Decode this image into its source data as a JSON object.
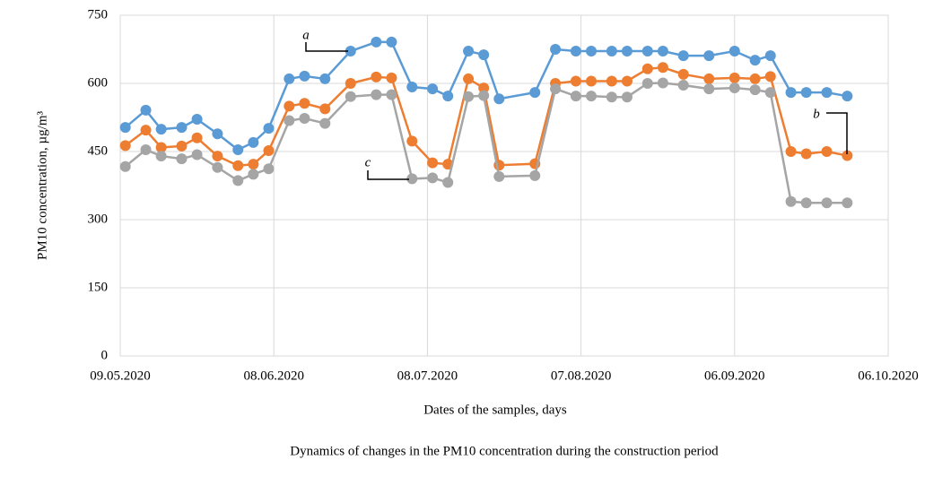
{
  "chart_data": {
    "type": "line",
    "title": "Dynamics of changes in the PM10 concentration during the construction period",
    "xlabel": "Dates of the samples, days",
    "ylabel": "PM10 concentration, µg/m³",
    "x": [
      "10.05.2020",
      "14.05.2020",
      "17.05.2020",
      "21.05.2020",
      "24.05.2020",
      "28.05.2020",
      "01.06.2020",
      "04.06.2020",
      "07.06.2020",
      "11.06.2020",
      "14.06.2020",
      "18.06.2020",
      "23.06.2020",
      "28.06.2020",
      "01.07.2020",
      "05.07.2020",
      "09.07.2020",
      "12.07.2020",
      "16.07.2020",
      "19.07.2020",
      "22.07.2020",
      "29.07.2020",
      "02.08.2020",
      "06.08.2020",
      "09.08.2020",
      "13.08.2020",
      "16.08.2020",
      "20.08.2020",
      "23.08.2020",
      "27.08.2020",
      "01.09.2020",
      "06.09.2020",
      "10.09.2020",
      "13.09.2020",
      "17.09.2020",
      "20.09.2020",
      "24.09.2020",
      "28.09.2020"
    ],
    "series": [
      {
        "name": "a",
        "color": "#5b9bd5",
        "values": [
          503,
          541,
          499,
          503,
          521,
          489,
          454,
          470,
          501,
          610,
          616,
          610,
          671,
          691,
          691,
          592,
          588,
          572,
          671,
          663,
          566,
          580,
          675,
          671,
          671,
          671,
          671,
          671,
          671,
          661,
          661,
          671,
          651,
          661,
          580,
          580,
          580,
          572
        ]
      },
      {
        "name": "b",
        "color": "#ed7d31",
        "values": [
          463,
          497,
          459,
          462,
          480,
          440,
          419,
          422,
          452,
          550,
          556,
          544,
          600,
          614,
          612,
          473,
          425,
          422,
          610,
          590,
          420,
          423,
          600,
          605,
          605,
          605,
          605,
          632,
          635,
          620,
          610,
          612,
          610,
          615,
          450,
          445,
          450,
          441
        ]
      },
      {
        "name": "c",
        "color": "#a5a5a5",
        "values": [
          417,
          454,
          440,
          434,
          443,
          415,
          386,
          400,
          412,
          518,
          523,
          512,
          571,
          575,
          575,
          390,
          392,
          382,
          571,
          573,
          395,
          397,
          588,
          572,
          572,
          570,
          570,
          600,
          601,
          596,
          588,
          590,
          586,
          580,
          340,
          337,
          337,
          337
        ]
      }
    ],
    "xlim": [
      "09.05.2020",
      "06.10.2020"
    ],
    "xticks": [
      "09.05.2020",
      "08.06.2020",
      "08.07.2020",
      "07.08.2020",
      "06.09.2020",
      "06.10.2020"
    ],
    "ylim": [
      0,
      750
    ],
    "yticks": [
      0,
      150,
      300,
      450,
      600,
      750
    ],
    "grid": true
  }
}
